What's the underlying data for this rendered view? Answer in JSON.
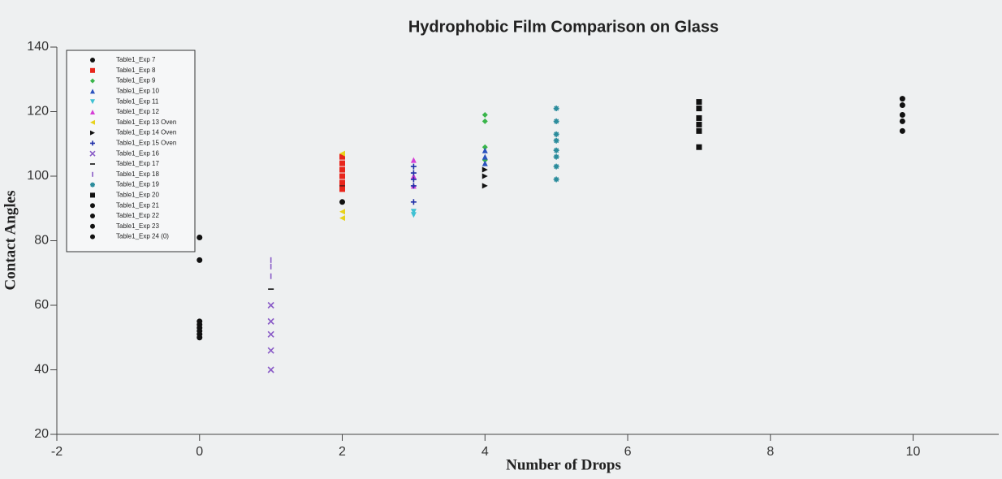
{
  "chart_data": {
    "type": "scatter",
    "title": "Hydrophobic Film Comparison on Glass",
    "x_label": "Number of Drops",
    "y_label": "Contact Angles",
    "xlim": [
      -2,
      11.2
    ],
    "ylim": [
      20,
      140
    ],
    "xticks": [
      -2,
      0,
      2,
      4,
      6,
      8,
      10
    ],
    "yticks": [
      20,
      40,
      60,
      80,
      100,
      120,
      140
    ],
    "legend": "upper-left",
    "series": [
      {
        "name": "Table1_Exp 7",
        "color": "#111111",
        "marker": "circle",
        "x": [
          2,
          2
        ],
        "values": [
          92,
          97
        ]
      },
      {
        "name": "Table1_Exp 8",
        "color": "#e8261c",
        "marker": "square",
        "x": [
          2,
          2,
          2,
          2,
          2,
          2
        ],
        "values": [
          96,
          98,
          100,
          102,
          104,
          106
        ]
      },
      {
        "name": "Table1_Exp 9",
        "color": "#39b54a",
        "marker": "diamond",
        "x": [
          4,
          4,
          4,
          4
        ],
        "values": [
          119,
          117,
          109,
          105
        ]
      },
      {
        "name": "Table1_Exp 10",
        "color": "#2a52be",
        "marker": "triangle-up",
        "x": [
          4,
          4,
          4
        ],
        "values": [
          108,
          106,
          104
        ]
      },
      {
        "name": "Table1_Exp 11",
        "color": "#3ec1d3",
        "marker": "triangle-down",
        "x": [
          3,
          3
        ],
        "values": [
          88,
          89
        ]
      },
      {
        "name": "Table1_Exp 12",
        "color": "#d63fd6",
        "marker": "triangle-up",
        "x": [
          3,
          3,
          3
        ],
        "values": [
          97,
          100,
          105
        ]
      },
      {
        "name": "Table1_Exp 13 Oven",
        "color": "#e8d21c",
        "marker": "triangle-left",
        "x": [
          2,
          2,
          2
        ],
        "values": [
          87,
          89,
          107
        ]
      },
      {
        "name": "Table1_Exp 14 Oven",
        "color": "#111111",
        "marker": "triangle-right",
        "x": [
          4,
          4,
          4
        ],
        "values": [
          97,
          100,
          102
        ]
      },
      {
        "name": "Table1_Exp 15 Oven",
        "color": "#1f2fa8",
        "marker": "plus",
        "x": [
          3,
          3,
          3,
          3,
          3
        ],
        "values": [
          92,
          97,
          99,
          101,
          103
        ]
      },
      {
        "name": "Table1_Exp 16",
        "color": "#8a5cc7",
        "marker": "cross",
        "x": [
          1,
          1,
          1,
          1,
          1
        ],
        "values": [
          40,
          46,
          51,
          55,
          60
        ]
      },
      {
        "name": "Table1_Exp 17",
        "color": "#111111",
        "marker": "dash",
        "x": [
          1
        ],
        "values": [
          65
        ]
      },
      {
        "name": "Table1_Exp 18",
        "color": "#8a5cc7",
        "marker": "vbar",
        "x": [
          1,
          1,
          1
        ],
        "values": [
          74,
          72,
          69
        ]
      },
      {
        "name": "Table1_Exp 19",
        "color": "#2b8c9c",
        "marker": "star",
        "x": [
          5,
          5,
          5,
          5,
          5,
          5,
          5,
          5
        ],
        "values": [
          99,
          103,
          106,
          108,
          111,
          113,
          117,
          121
        ]
      },
      {
        "name": "Table1_Exp 20",
        "color": "#111111",
        "marker": "square",
        "x": [
          7,
          7,
          7,
          7,
          7,
          7
        ],
        "values": [
          109,
          114,
          116,
          118,
          121,
          123
        ]
      },
      {
        "name": "Table1_Exp 21",
        "color": "#111111",
        "marker": "circle",
        "x": [
          9.85,
          9.85
        ],
        "values": [
          114,
          117
        ]
      },
      {
        "name": "Table1_Exp 22",
        "color": "#111111",
        "marker": "circle",
        "x": [
          9.85,
          9.85
        ],
        "values": [
          119,
          122
        ]
      },
      {
        "name": "Table1_Exp 23",
        "color": "#111111",
        "marker": "circle",
        "x": [
          9.85
        ],
        "values": [
          124
        ]
      },
      {
        "name": "Table1_Exp 24 (0)",
        "color": "#111111",
        "marker": "circle",
        "x": [
          0,
          0,
          0,
          0,
          0,
          0,
          0,
          0
        ],
        "values": [
          81,
          74,
          55,
          54,
          53,
          52,
          51,
          50
        ]
      }
    ]
  }
}
